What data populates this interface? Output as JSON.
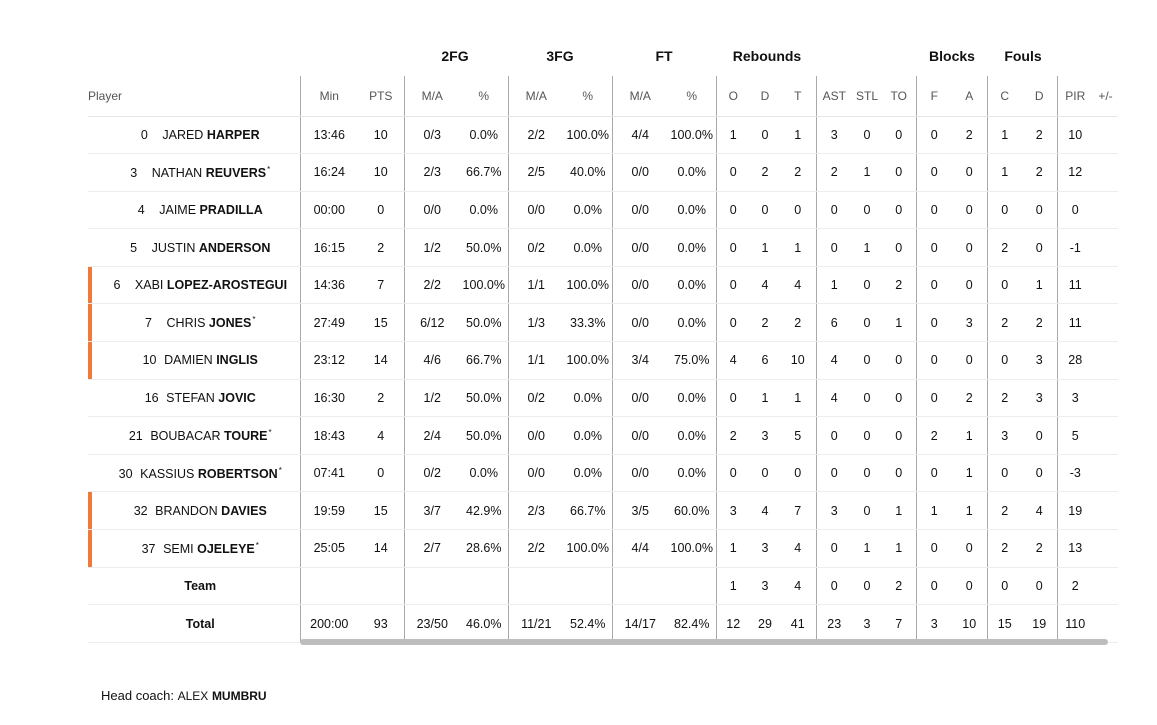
{
  "groups": {
    "fg2": "2FG",
    "fg3": "3FG",
    "ft": "FT",
    "rebounds": "Rebounds",
    "blocks": "Blocks",
    "fouls": "Fouls"
  },
  "columns": [
    "Player",
    "Min",
    "PTS",
    "M/A",
    "%",
    "M/A",
    "%",
    "M/A",
    "%",
    "O",
    "D",
    "T",
    "AST",
    "STL",
    "TO",
    "F",
    "A",
    "C",
    "D",
    "PIR",
    "+/-"
  ],
  "players": [
    {
      "num": "0",
      "first": "JARED",
      "last": "HARPER",
      "star": "",
      "bar": false,
      "stats": [
        "13:46",
        "10",
        "0/3",
        "0.0%",
        "2/2",
        "100.0%",
        "4/4",
        "100.0%",
        "1",
        "0",
        "1",
        "3",
        "0",
        "0",
        "0",
        "2",
        "1",
        "2",
        "10",
        ""
      ]
    },
    {
      "num": "3",
      "first": "NATHAN",
      "last": "REUVERS",
      "star": "*",
      "bar": false,
      "stats": [
        "16:24",
        "10",
        "2/3",
        "66.7%",
        "2/5",
        "40.0%",
        "0/0",
        "0.0%",
        "0",
        "2",
        "2",
        "2",
        "1",
        "0",
        "0",
        "0",
        "1",
        "2",
        "12",
        ""
      ]
    },
    {
      "num": "4",
      "first": "JAIME",
      "last": "PRADILLA",
      "star": "",
      "bar": false,
      "stats": [
        "00:00",
        "0",
        "0/0",
        "0.0%",
        "0/0",
        "0.0%",
        "0/0",
        "0.0%",
        "0",
        "0",
        "0",
        "0",
        "0",
        "0",
        "0",
        "0",
        "0",
        "0",
        "0",
        ""
      ]
    },
    {
      "num": "5",
      "first": "JUSTIN",
      "last": "ANDERSON",
      "star": "",
      "bar": false,
      "stats": [
        "16:15",
        "2",
        "1/2",
        "50.0%",
        "0/2",
        "0.0%",
        "0/0",
        "0.0%",
        "0",
        "1",
        "1",
        "0",
        "1",
        "0",
        "0",
        "0",
        "2",
        "0",
        "-1",
        ""
      ]
    },
    {
      "num": "6",
      "first": "XABI",
      "last": "LOPEZ-AROSTEGUI",
      "star": "",
      "bar": true,
      "stats": [
        "14:36",
        "7",
        "2/2",
        "100.0%",
        "1/1",
        "100.0%",
        "0/0",
        "0.0%",
        "0",
        "4",
        "4",
        "1",
        "0",
        "2",
        "0",
        "0",
        "0",
        "1",
        "11",
        ""
      ]
    },
    {
      "num": "7",
      "first": "CHRIS",
      "last": "JONES",
      "star": "*",
      "bar": true,
      "stats": [
        "27:49",
        "15",
        "6/12",
        "50.0%",
        "1/3",
        "33.3%",
        "0/0",
        "0.0%",
        "0",
        "2",
        "2",
        "6",
        "0",
        "1",
        "0",
        "3",
        "2",
        "2",
        "11",
        ""
      ]
    },
    {
      "num": "10",
      "first": "DAMIEN",
      "last": "INGLIS",
      "star": "",
      "bar": true,
      "stats": [
        "23:12",
        "14",
        "4/6",
        "66.7%",
        "1/1",
        "100.0%",
        "3/4",
        "75.0%",
        "4",
        "6",
        "10",
        "4",
        "0",
        "0",
        "0",
        "0",
        "0",
        "3",
        "28",
        ""
      ]
    },
    {
      "num": "16",
      "first": "STEFAN",
      "last": "JOVIC",
      "star": "",
      "bar": false,
      "stats": [
        "16:30",
        "2",
        "1/2",
        "50.0%",
        "0/2",
        "0.0%",
        "0/0",
        "0.0%",
        "0",
        "1",
        "1",
        "4",
        "0",
        "0",
        "0",
        "2",
        "2",
        "3",
        "3",
        ""
      ]
    },
    {
      "num": "21",
      "first": "BOUBACAR",
      "last": "TOURE",
      "star": "*",
      "bar": false,
      "stats": [
        "18:43",
        "4",
        "2/4",
        "50.0%",
        "0/0",
        "0.0%",
        "0/0",
        "0.0%",
        "2",
        "3",
        "5",
        "0",
        "0",
        "0",
        "2",
        "1",
        "3",
        "0",
        "5",
        ""
      ]
    },
    {
      "num": "30",
      "first": "KASSIUS",
      "last": "ROBERTSON",
      "star": "*",
      "bar": false,
      "stats": [
        "07:41",
        "0",
        "0/2",
        "0.0%",
        "0/0",
        "0.0%",
        "0/0",
        "0.0%",
        "0",
        "0",
        "0",
        "0",
        "0",
        "0",
        "0",
        "1",
        "0",
        "0",
        "-3",
        ""
      ]
    },
    {
      "num": "32",
      "first": "BRANDON",
      "last": "DAVIES",
      "star": "",
      "bar": true,
      "stats": [
        "19:59",
        "15",
        "3/7",
        "42.9%",
        "2/3",
        "66.7%",
        "3/5",
        "60.0%",
        "3",
        "4",
        "7",
        "3",
        "0",
        "1",
        "1",
        "1",
        "2",
        "4",
        "19",
        ""
      ]
    },
    {
      "num": "37",
      "first": "SEMI",
      "last": "OJELEYE",
      "star": "*",
      "bar": true,
      "stats": [
        "25:05",
        "14",
        "2/7",
        "28.6%",
        "2/2",
        "100.0%",
        "4/4",
        "100.0%",
        "1",
        "3",
        "4",
        "0",
        "1",
        "1",
        "0",
        "0",
        "2",
        "2",
        "13",
        ""
      ]
    }
  ],
  "team": {
    "label": "Team",
    "stats": [
      "",
      "",
      "",
      "",
      "",
      "",
      "",
      "",
      "1",
      "3",
      "4",
      "0",
      "0",
      "2",
      "0",
      "0",
      "0",
      "0",
      "2",
      ""
    ]
  },
  "total": {
    "label": "Total",
    "stats": [
      "200:00",
      "93",
      "23/50",
      "46.0%",
      "11/21",
      "52.4%",
      "14/17",
      "82.4%",
      "12",
      "29",
      "41",
      "23",
      "3",
      "7",
      "3",
      "10",
      "15",
      "19",
      "110",
      ""
    ]
  },
  "coach": {
    "label": "Head coach:",
    "first": "ALEX",
    "last": "MUMBRU"
  },
  "colors": {
    "starter_bar": "#f07a3c",
    "divider": "#a9a9a9",
    "scrollbar": "#bdbdbd"
  }
}
